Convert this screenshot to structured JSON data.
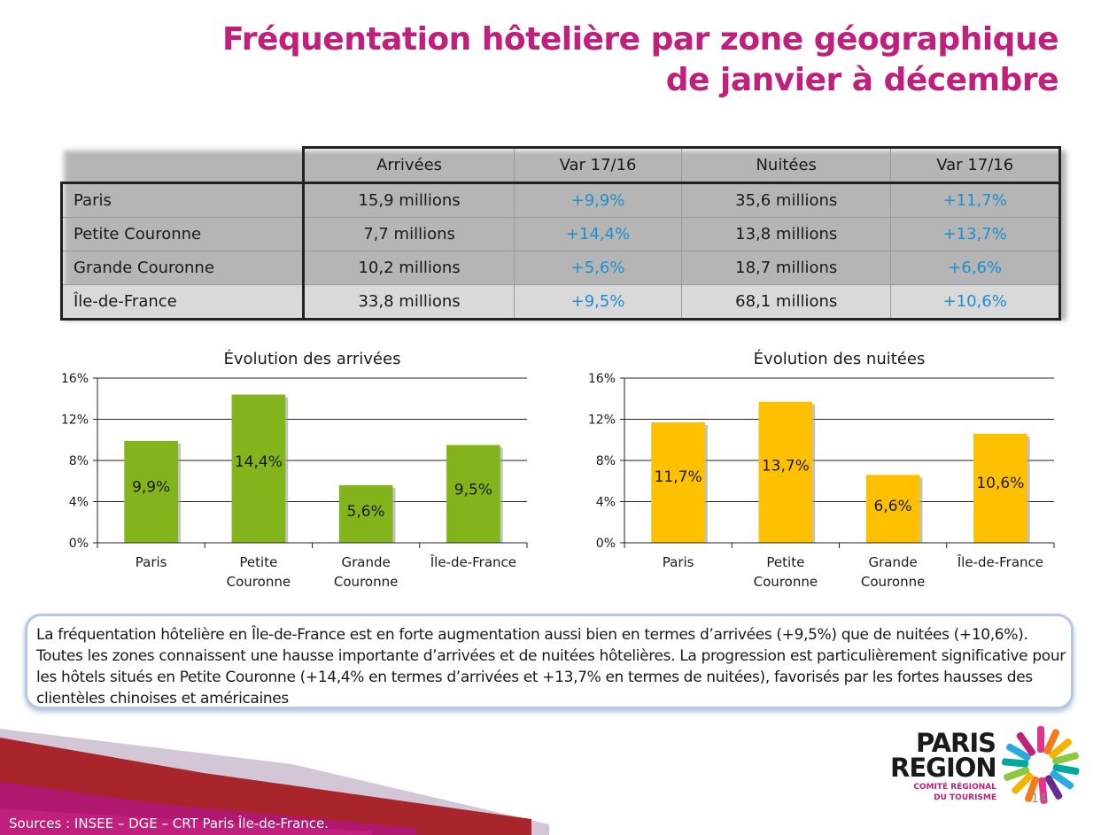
{
  "title": {
    "line1": "Fréquentation hôtelière par zone géographique",
    "line2": "de janvier à décembre"
  },
  "table": {
    "headers": [
      "Arrivées",
      "Var 17/16",
      "Nuitées",
      "Var 17/16"
    ],
    "rows": [
      {
        "label": "Paris",
        "arrivees": "15,9 millions",
        "var_arr": "+9,9%",
        "nuitees": "35,6 millions",
        "var_nuit": "+11,7%"
      },
      {
        "label": "Petite Couronne",
        "arrivees": "7,7 millions",
        "var_arr": "+14,4%",
        "nuitees": "13,8 millions",
        "var_nuit": "+13,7%"
      },
      {
        "label": "Grande Couronne",
        "arrivees": "10,2 millions",
        "var_arr": "+5,6%",
        "nuitees": "18,7 millions",
        "var_nuit": "+6,6%"
      },
      {
        "label": "Île-de-France",
        "arrivees": "33,8 millions",
        "var_arr": "+9,5%",
        "nuitees": "68,1 millions",
        "var_nuit": "+10,6%"
      }
    ]
  },
  "chart_data": [
    {
      "type": "bar",
      "title": "Évolution des arrivées",
      "categories": [
        [
          "Paris"
        ],
        [
          "Petite",
          "Couronne"
        ],
        [
          "Grande",
          "Couronne"
        ],
        [
          "Île-de-France"
        ]
      ],
      "values": [
        9.9,
        14.4,
        5.6,
        9.5
      ],
      "value_labels": [
        "9,9%",
        "14,4%",
        "5,6%",
        "9,5%"
      ],
      "yticks": [
        "0%",
        "4%",
        "8%",
        "12%",
        "16%"
      ],
      "ylim": [
        0,
        16
      ],
      "grid": true,
      "color": "#84b41c"
    },
    {
      "type": "bar",
      "title": "Évolution des nuitées",
      "categories": [
        [
          "Paris"
        ],
        [
          "Petite",
          "Couronne"
        ],
        [
          "Grande",
          "Couronne"
        ],
        [
          "Île-de-France"
        ]
      ],
      "values": [
        11.7,
        13.7,
        6.6,
        10.6
      ],
      "value_labels": [
        "11,7%",
        "13,7%",
        "6,6%",
        "10,6%"
      ],
      "yticks": [
        "0%",
        "4%",
        "8%",
        "12%",
        "16%"
      ],
      "ylim": [
        0,
        16
      ],
      "grid": true,
      "color": "#ffc000"
    }
  ],
  "note": "La fréquentation hôtelière en Île-de-France est en forte augmentation aussi bien en termes d’arrivées (+9,5%) que de nuitées (+10,6%). Toutes les zones connaissent une hausse importante d’arrivées et de nuitées hôtelières. La progression est particulièrement significative pour les hôtels situés en Petite Couronne (+14,4% en termes d’arrivées et +13,7% en termes de nuitées), favorisés par les fortes hausses des clientèles chinoises et américaines",
  "logo": {
    "line1": "PARIS",
    "line2": "REGION",
    "sub1": "COMITÉ RÉGIONAL",
    "sub2": "DU TOURISME"
  },
  "page_number": "14",
  "sources": "Sources : INSEE – DGE – CRT Paris Île-de-France.",
  "colors": {
    "brand": "#c01f7c",
    "variation": "#1d8fce",
    "bar_arrivees": "#84b41c",
    "bar_nuitees": "#ffc000",
    "footer_red": "#a8262b"
  }
}
